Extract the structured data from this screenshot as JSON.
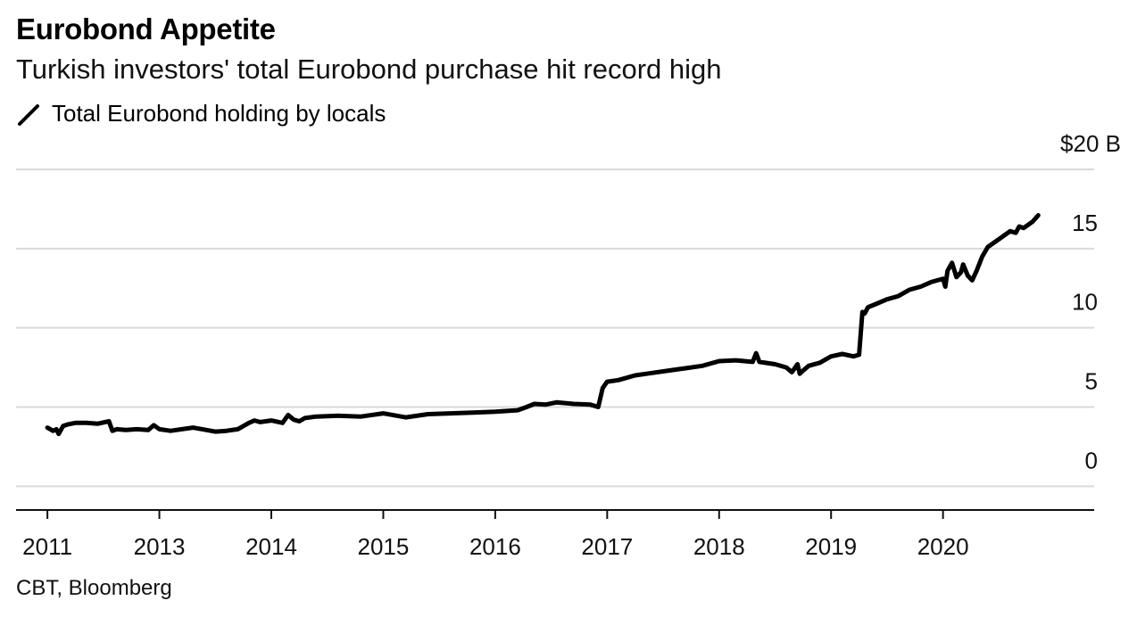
{
  "header": {
    "title": "Eurobond Appetite",
    "subtitle": "Turkish investors' total Eurobond purchase hit record high"
  },
  "legend": {
    "label": "Total Eurobond holding by locals",
    "color": "#000000"
  },
  "footer": {
    "source": "CBT, Bloomberg"
  },
  "chart_data": {
    "type": "line",
    "title": "Eurobond Appetite",
    "subtitle": "Turkish investors' total Eurobond purchase hit record high",
    "xlabel": "",
    "ylabel": "",
    "unit_label": "$20 B",
    "ylim": [
      -1.5,
      20
    ],
    "grid": true,
    "y_ticks": [
      {
        "value": 20,
        "label": "$20 B"
      },
      {
        "value": 15,
        "label": "15"
      },
      {
        "value": 10,
        "label": "10"
      },
      {
        "value": 5,
        "label": "5"
      },
      {
        "value": 0,
        "label": "0"
      }
    ],
    "x_ticks": [
      "2011",
      "2013",
      "2014",
      "2015",
      "2016",
      "2017",
      "2018",
      "2019",
      "2020"
    ],
    "x_tick_index": [
      0,
      1,
      2,
      3,
      4,
      5,
      6,
      7,
      8
    ],
    "xlim": [
      -0.28,
      9.35
    ],
    "series": [
      {
        "name": "Total Eurobond holding by locals",
        "color": "#000000",
        "x": [
          0.0,
          0.05,
          0.08,
          0.1,
          0.14,
          0.18,
          0.25,
          0.35,
          0.45,
          0.55,
          0.58,
          0.62,
          0.7,
          0.8,
          0.9,
          0.95,
          1.0,
          1.1,
          1.3,
          1.5,
          1.6,
          1.7,
          1.8,
          1.85,
          1.9,
          2.0,
          2.1,
          2.15,
          2.2,
          2.25,
          2.3,
          2.4,
          2.6,
          2.8,
          3.0,
          3.2,
          3.4,
          3.6,
          3.8,
          4.0,
          4.2,
          4.28,
          4.35,
          4.45,
          4.55,
          4.7,
          4.85,
          4.92,
          4.96,
          5.0,
          5.1,
          5.25,
          5.4,
          5.55,
          5.7,
          5.85,
          6.0,
          6.15,
          6.3,
          6.33,
          6.36,
          6.5,
          6.6,
          6.65,
          6.7,
          6.72,
          6.75,
          6.8,
          6.9,
          7.0,
          7.1,
          7.2,
          7.25,
          7.28,
          7.3,
          7.33,
          7.4,
          7.5,
          7.6,
          7.7,
          7.8,
          7.9,
          8.0,
          8.02,
          8.04,
          8.08,
          8.12,
          8.16,
          8.18,
          8.22,
          8.26,
          8.3,
          8.35,
          8.4,
          8.46,
          8.5,
          8.56,
          8.6,
          8.65,
          8.68,
          8.72,
          8.76,
          8.8,
          8.85
        ],
        "values": [
          3.7,
          3.5,
          3.6,
          3.3,
          3.8,
          3.9,
          4.0,
          4.0,
          3.95,
          4.1,
          3.5,
          3.6,
          3.55,
          3.6,
          3.55,
          3.85,
          3.6,
          3.5,
          3.7,
          3.45,
          3.5,
          3.6,
          4.0,
          4.15,
          4.05,
          4.15,
          4.0,
          4.5,
          4.2,
          4.1,
          4.3,
          4.4,
          4.45,
          4.4,
          4.6,
          4.35,
          4.55,
          4.6,
          4.65,
          4.7,
          4.8,
          5.0,
          5.2,
          5.15,
          5.3,
          5.2,
          5.15,
          5.0,
          6.2,
          6.6,
          6.7,
          7.0,
          7.15,
          7.3,
          7.45,
          7.6,
          7.9,
          7.95,
          7.85,
          8.4,
          7.85,
          7.7,
          7.5,
          7.2,
          7.7,
          7.1,
          7.3,
          7.6,
          7.8,
          8.2,
          8.35,
          8.2,
          8.3,
          11.0,
          10.9,
          11.3,
          11.5,
          11.8,
          12.0,
          12.4,
          12.6,
          12.9,
          13.1,
          12.6,
          13.6,
          14.1,
          13.2,
          13.5,
          14.0,
          13.3,
          13.0,
          13.6,
          14.5,
          15.1,
          15.4,
          15.6,
          15.9,
          16.1,
          16.0,
          16.4,
          16.3,
          16.5,
          16.7,
          17.1
        ]
      }
    ]
  }
}
